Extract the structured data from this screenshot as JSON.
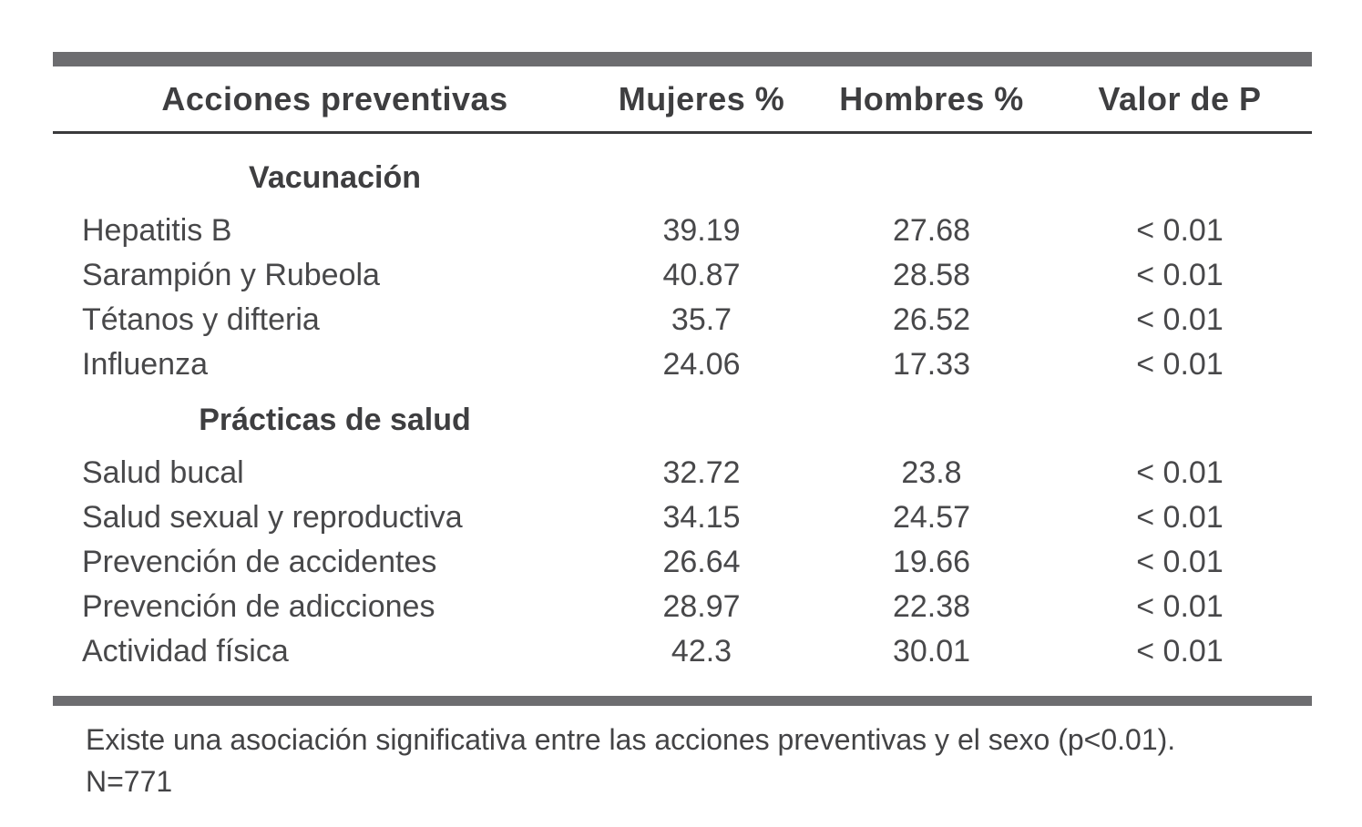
{
  "colors": {
    "rule_thick": "#6d6d70",
    "rule_thin": "#3a3a3c",
    "heading_text": "#3e3e40",
    "body_text": "#48484a"
  },
  "table": {
    "columns": {
      "label": "Acciones preventivas",
      "mujeres": "Mujeres %",
      "hombres": "Hombres %",
      "p": "Valor de P"
    },
    "sections": [
      {
        "title": "Vacunación",
        "rows": [
          {
            "label": "Hepatitis B",
            "mujeres": "39.19",
            "hombres": "27.68",
            "p": "< 0.01"
          },
          {
            "label": "Sarampión y Rubeola",
            "mujeres": "40.87",
            "hombres": "28.58",
            "p": "< 0.01"
          },
          {
            "label": "Tétanos y difteria",
            "mujeres": "35.7",
            "hombres": "26.52",
            "p": "< 0.01"
          },
          {
            "label": "Influenza",
            "mujeres": "24.06",
            "hombres": "17.33",
            "p": "< 0.01"
          }
        ]
      },
      {
        "title": "Prácticas de salud",
        "rows": [
          {
            "label": "Salud bucal",
            "mujeres": "32.72",
            "hombres": "23.8",
            "p": "< 0.01"
          },
          {
            "label": "Salud sexual y reproductiva",
            "mujeres": "34.15",
            "hombres": "24.57",
            "p": "< 0.01"
          },
          {
            "label": "Prevención de accidentes",
            "mujeres": "26.64",
            "hombres": "19.66",
            "p": "< 0.01"
          },
          {
            "label": "Prevención de adicciones",
            "mujeres": "28.97",
            "hombres": "22.38",
            "p": "< 0.01"
          },
          {
            "label": "Actividad física",
            "mujeres": "42.3",
            "hombres": "30.01",
            "p": "< 0.01"
          }
        ]
      }
    ],
    "footnotes": [
      "Existe una asociación significativa entre las acciones preventivas y el sexo (p<0.01).",
      "N=771"
    ]
  }
}
